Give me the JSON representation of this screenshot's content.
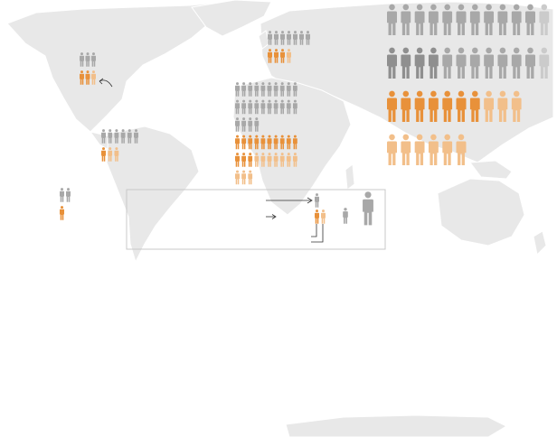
{
  "colors": {
    "land": "#e8e8e8",
    "gray_light": "#cbcbcb",
    "gray": "#a8a8a8",
    "gray_dark": "#8f8f8f",
    "orange": "#e8913a",
    "orange_light": "#f2bf8a",
    "legend_border": "#c8c8c8",
    "line": "#333333"
  },
  "icon_name": "person-icon",
  "groups": [
    {
      "id": "north-america",
      "rows": [
        [
          [
            "gray",
            3
          ]
        ],
        [
          [
            "orange",
            2
          ],
          [
            "orange_light",
            1
          ]
        ]
      ]
    },
    {
      "id": "south-america",
      "rows": [
        [
          [
            "gray",
            6
          ]
        ],
        [
          [
            "orange",
            1
          ],
          [
            "orange_light",
            2
          ]
        ]
      ]
    },
    {
      "id": "oceania-pacific",
      "rows": [
        [
          [
            "gray",
            2
          ]
        ],
        [
          [
            "orange",
            1
          ]
        ]
      ]
    },
    {
      "id": "europe",
      "rows": [
        [
          [
            "gray",
            7
          ]
        ],
        [
          [
            "orange",
            3
          ],
          [
            "orange_light",
            1
          ]
        ]
      ]
    },
    {
      "id": "africa-middle-east",
      "rows": [
        [
          [
            "gray",
            10
          ]
        ],
        [
          [
            "gray",
            10
          ]
        ],
        [
          [
            "gray",
            4
          ]
        ],
        [
          [
            "orange",
            10
          ]
        ],
        [
          [
            "orange",
            3
          ],
          [
            "orange_light",
            7
          ]
        ],
        [
          [
            "orange_light",
            3
          ]
        ]
      ]
    },
    {
      "id": "asia",
      "rows": [
        [
          [
            "gray",
            11
          ],
          [
            "gray_light",
            1
          ]
        ],
        [
          [
            "gray_dark",
            4
          ],
          [
            "gray",
            7
          ],
          [
            "gray_light",
            1
          ]
        ],
        [
          [
            "orange",
            7
          ],
          [
            "orange_light",
            3
          ]
        ],
        [
          [
            "orange_light",
            6
          ],
          [
            "orange_light",
            0.5
          ]
        ]
      ]
    }
  ],
  "legend": {
    "icons": [
      "gray",
      "orange",
      "orange_light",
      "gray",
      "gray"
    ]
  }
}
